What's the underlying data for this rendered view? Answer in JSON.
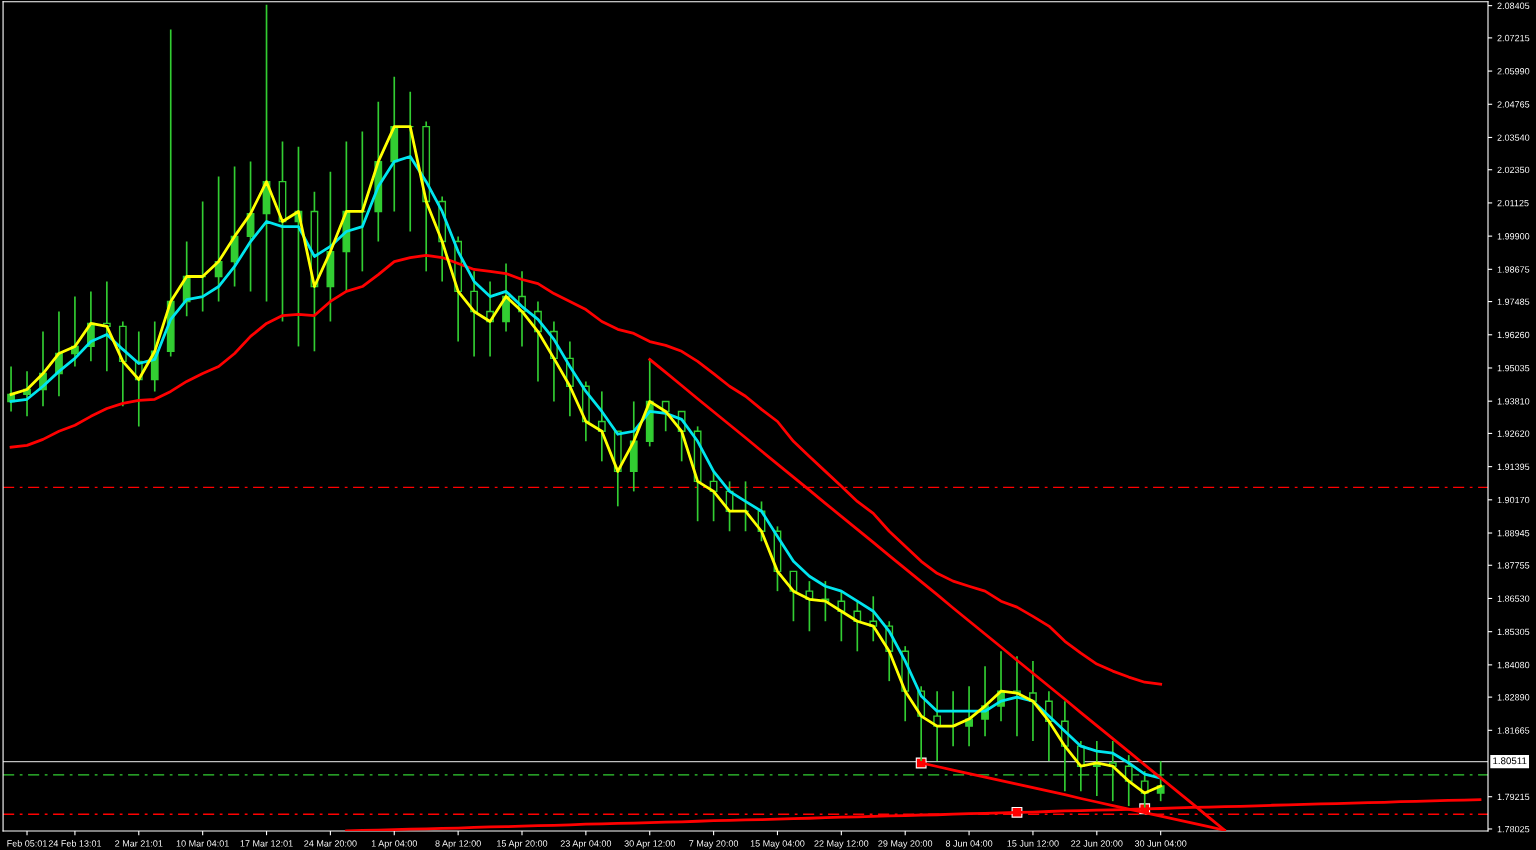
{
  "chart_data": {
    "type": "candlestick",
    "categories": [
      null,
      "Feb 05:01",
      null,
      null,
      "24 Feb 13:01",
      null,
      null,
      null,
      "2 Mar 21:01",
      null,
      null,
      null,
      "10 Mar 04:01",
      null,
      null,
      null,
      "17 Mar 12:01",
      null,
      null,
      null,
      "24 Mar 20:00",
      null,
      null,
      null,
      "1 Apr 04:00",
      null,
      null,
      null,
      "8 Apr 12:00",
      null,
      null,
      null,
      "15 Apr 20:00",
      null,
      null,
      null,
      "23 Apr 04:00",
      null,
      null,
      null,
      "30 Apr 12:00",
      null,
      null,
      null,
      "7 May 20:00",
      null,
      null,
      null,
      "15 May 04:00",
      null,
      null,
      null,
      "22 May 12:00",
      null,
      null,
      null,
      "29 May 20:00",
      null,
      null,
      null,
      "8 Jun 04:00",
      null,
      null,
      null,
      "15 Jun 12:00",
      null,
      null,
      null,
      "22 Jun 20:00",
      null,
      null,
      null,
      "30 Jun 04:00",
      null,
      null,
      null,
      null,
      null,
      null,
      null,
      null,
      null,
      null,
      null,
      null,
      null,
      null,
      null,
      null,
      null,
      null,
      null,
      null
    ],
    "color": "#32cd32",
    "ohlc": [
      [
        1.938,
        1.9509,
        1.9343,
        1.9406
      ],
      [
        1.9406,
        1.9491,
        1.9325,
        1.9424
      ],
      [
        1.9424,
        1.9638,
        1.9362,
        1.9483
      ],
      [
        1.9483,
        1.9712,
        1.9399,
        1.9557
      ],
      [
        1.9557,
        1.9767,
        1.9509,
        1.9583
      ],
      [
        1.9583,
        1.9786,
        1.9528,
        1.9668
      ],
      [
        1.9668,
        1.9823,
        1.9491,
        1.9657
      ],
      [
        1.9657,
        1.9675,
        1.9362,
        1.9528
      ],
      [
        1.9528,
        1.9638,
        1.9288,
        1.9461
      ],
      [
        1.9461,
        1.9675,
        1.9417,
        1.9565
      ],
      [
        1.9565,
        2.0752,
        1.9546,
        1.9749
      ],
      [
        1.9749,
        1.997,
        1.9694,
        1.9841
      ],
      [
        1.9841,
        2.0118,
        1.9712,
        1.9841
      ],
      [
        1.9841,
        2.021,
        1.9749,
        1.9896
      ],
      [
        1.9896,
        2.0247,
        1.9804,
        1.9989
      ],
      [
        1.9989,
        2.0265,
        1.9786,
        2.0073
      ],
      [
        2.0073,
        2.0844,
        1.9749,
        2.0191
      ],
      [
        2.0191,
        2.0339,
        1.9675,
        2.0044
      ],
      [
        2.0044,
        2.032,
        1.9583,
        2.0081
      ],
      [
        2.0081,
        2.0154,
        1.9565,
        1.9804
      ],
      [
        1.9804,
        2.0228,
        1.9675,
        1.9933
      ],
      [
        1.9933,
        2.0339,
        1.9786,
        2.0081
      ],
      [
        2.0081,
        2.0376,
        1.986,
        2.0081
      ],
      [
        2.0081,
        2.0486,
        1.997,
        2.0265
      ],
      [
        2.0265,
        2.0578,
        2.0081,
        2.0394
      ],
      [
        2.0394,
        2.0523,
        2.0007,
        2.0394
      ],
      [
        2.0394,
        2.0413,
        1.986,
        2.0118
      ],
      [
        2.0118,
        2.0136,
        1.9823,
        1.997
      ],
      [
        1.997,
        1.9989,
        1.9601,
        1.9786
      ],
      [
        1.9786,
        1.986,
        1.9546,
        1.9712
      ],
      [
        1.9712,
        1.9823,
        1.9546,
        1.9675
      ],
      [
        1.9675,
        1.9889,
        1.9638,
        1.9767
      ],
      [
        1.9767,
        1.986,
        1.9583,
        1.9712
      ],
      [
        1.9712,
        1.9749,
        1.9454,
        1.9638
      ],
      [
        1.9638,
        1.9675,
        1.938,
        1.9539
      ],
      [
        1.9539,
        1.9601,
        1.9325,
        1.9436
      ],
      [
        1.9436,
        1.9454,
        1.9233,
        1.9306
      ],
      [
        1.9306,
        1.9417,
        1.9159,
        1.927
      ],
      [
        1.927,
        1.927,
        1.8993,
        1.9122
      ],
      [
        1.9122,
        1.938,
        1.9048,
        1.9233
      ],
      [
        1.9233,
        1.9535,
        1.9214,
        1.938
      ],
      [
        1.938,
        1.938,
        1.927,
        1.9343
      ],
      [
        1.9343,
        1.9343,
        1.9159,
        1.927
      ],
      [
        1.927,
        1.9288,
        1.8938,
        1.9085
      ],
      [
        1.9085,
        1.9122,
        1.8938,
        1.9048
      ],
      [
        1.9048,
        1.9085,
        1.8901,
        1.8975
      ],
      [
        1.8975,
        1.9085,
        1.8901,
        1.8975
      ],
      [
        1.8975,
        1.9011,
        1.8864,
        1.8901
      ],
      [
        1.8901,
        1.8919,
        1.868,
        1.8753
      ],
      [
        1.8753,
        1.8753,
        1.8569,
        1.868
      ],
      [
        1.868,
        1.8717,
        1.8532,
        1.865
      ],
      [
        1.865,
        1.8717,
        1.8569,
        1.8643
      ],
      [
        1.8643,
        1.868,
        1.8495,
        1.8606
      ],
      [
        1.8606,
        1.8643,
        1.8458,
        1.8569
      ],
      [
        1.8569,
        1.8661,
        1.8495,
        1.8551
      ],
      [
        1.8551,
        1.8569,
        1.8348,
        1.8458
      ],
      [
        1.8458,
        1.8477,
        1.82,
        1.8311
      ],
      [
        1.8311,
        1.8329,
        1.8053,
        1.8219
      ],
      [
        1.8219,
        1.8311,
        1.8053,
        1.8182
      ],
      [
        1.8182,
        1.8311,
        1.8108,
        1.8182
      ],
      [
        1.8182,
        1.8329,
        1.8108,
        1.8208
      ],
      [
        1.8208,
        1.8403,
        1.8145,
        1.8256
      ],
      [
        1.8256,
        1.8458,
        1.82,
        1.8311
      ],
      [
        1.8311,
        1.844,
        1.8145,
        1.8304
      ],
      [
        1.8304,
        1.8422,
        1.8127,
        1.8274
      ],
      [
        1.8274,
        1.8311,
        1.8053,
        1.82
      ],
      [
        1.82,
        1.8274,
        1.7942,
        1.8108
      ],
      [
        1.8108,
        1.8127,
        1.7942,
        1.8034
      ],
      [
        1.8034,
        1.8127,
        1.7924,
        1.8046
      ],
      [
        1.8046,
        1.8127,
        1.7905,
        1.8034
      ],
      [
        1.8034,
        1.8075,
        1.7887,
        1.7979
      ],
      [
        1.7979,
        1.8016,
        1.7876,
        1.7935
      ],
      [
        1.7935,
        1.8053,
        1.7905,
        1.7961
      ],
      null,
      null,
      null,
      null,
      null,
      null,
      null,
      null,
      null,
      null,
      null,
      null,
      null,
      null,
      null,
      null,
      null,
      null,
      null,
      null
    ],
    "series": [
      {
        "type": "line",
        "color": "#ff0000",
        "values": [
          1.9211,
          1.9218,
          1.924,
          1.927,
          1.9292,
          1.9325,
          1.9354,
          1.9373,
          1.9384,
          1.9388,
          1.9417,
          1.9454,
          1.9483,
          1.9509,
          1.9557,
          1.962,
          1.9668,
          1.9697,
          1.9701,
          1.9697,
          1.9749,
          1.9786,
          1.9804,
          1.9848,
          1.9896,
          1.9911,
          1.9919,
          1.9911,
          1.9889,
          1.9867,
          1.986,
          1.9852,
          1.983,
          1.9815,
          1.9778,
          1.9749,
          1.9719,
          1.9675,
          1.9646,
          1.9631,
          1.9601,
          1.9587,
          1.9565,
          1.9528,
          1.9483,
          1.9436,
          1.9399,
          1.9351,
          1.9306,
          1.9233,
          1.9177,
          1.9122,
          1.9067,
          1.9011,
          1.8967,
          1.8901,
          1.8846,
          1.879,
          1.8746,
          1.8717,
          1.8698,
          1.868,
          1.8643,
          1.8621,
          1.8587,
          1.8551,
          1.8495,
          1.8451,
          1.8411,
          1.8385,
          1.8363,
          1.8344,
          1.8337,
          null,
          null,
          null,
          null,
          null,
          null,
          null,
          null,
          null,
          null,
          null,
          null,
          null,
          null,
          null,
          null,
          null,
          null,
          null,
          null
        ]
      },
      {
        "type": "line",
        "color": "#00e5ee",
        "values": [
          1.938,
          1.9388,
          1.9436,
          1.9491,
          1.9539,
          1.9601,
          1.9627,
          1.9572,
          1.952,
          1.9535,
          1.9683,
          1.9756,
          1.9767,
          1.9804,
          1.9878,
          1.997,
          2.0044,
          2.0025,
          2.0025,
          1.9915,
          1.9952,
          2.0007,
          2.0025,
          2.0173,
          2.0265,
          2.0284,
          2.0191,
          2.0081,
          1.9933,
          1.9823,
          1.9767,
          1.9786,
          1.973,
          1.9683,
          1.9609,
          1.9509,
          1.9417,
          1.9343,
          1.9259,
          1.927,
          1.9343,
          1.9336,
          1.9314,
          1.9233,
          1.9122,
          1.9048,
          1.9011,
          1.8975,
          1.8882,
          1.879,
          1.8735,
          1.8698,
          1.868,
          1.8643,
          1.8606,
          1.8532,
          1.8422,
          1.8293,
          1.8237,
          1.8237,
          1.8237,
          1.8237,
          1.8274,
          1.8289,
          1.8274,
          1.8219,
          1.8163,
          1.8108,
          1.809,
          1.8082,
          1.8046,
          1.8005,
          1.799,
          null,
          null,
          null,
          null,
          null,
          null,
          null,
          null,
          null,
          null,
          null,
          null,
          null,
          null,
          null,
          null,
          null,
          null,
          null,
          null
        ]
      },
      {
        "type": "line",
        "color": "#ffff00",
        "values": [
          1.9406,
          1.9424,
          1.9483,
          1.9557,
          1.9583,
          1.9668,
          1.9657,
          1.9528,
          1.9461,
          1.9565,
          1.9749,
          1.9841,
          1.9841,
          1.9896,
          1.9989,
          2.0073,
          2.0191,
          2.0044,
          2.0081,
          1.9804,
          1.9933,
          2.0081,
          2.0081,
          2.0265,
          2.0394,
          2.0394,
          2.0118,
          1.997,
          1.9786,
          1.9712,
          1.9675,
          1.9767,
          1.9712,
          1.9638,
          1.9539,
          1.9436,
          1.9306,
          1.927,
          1.9122,
          1.9233,
          1.938,
          1.9343,
          1.927,
          1.9085,
          1.9048,
          1.8975,
          1.8975,
          1.8901,
          1.8753,
          1.868,
          1.865,
          1.8643,
          1.8606,
          1.8569,
          1.8551,
          1.8458,
          1.8311,
          1.8219,
          1.8182,
          1.8182,
          1.8208,
          1.8256,
          1.8311,
          1.8304,
          1.8274,
          1.82,
          1.8108,
          1.8034,
          1.8046,
          1.8034,
          1.7979,
          1.7935,
          1.7961,
          null,
          null,
          null,
          null,
          null,
          null,
          null,
          null,
          null,
          null,
          null,
          null,
          null,
          null,
          null,
          null,
          null,
          null,
          null,
          null
        ]
      },
      {
        "type": "line",
        "color": "#ff0000",
        "values": [
          null,
          null,
          null,
          null,
          null,
          null,
          null,
          null,
          null,
          null,
          null,
          null,
          null,
          null,
          null,
          null,
          null,
          null,
          null,
          null,
          null,
          null,
          null,
          null,
          null,
          null,
          null,
          null,
          null,
          null,
          null,
          null,
          null,
          null,
          null,
          null,
          null,
          null,
          null,
          null,
          1.9535,
          1.9487,
          1.9439,
          1.939,
          1.9342,
          1.9294,
          1.9246,
          1.9197,
          1.9149,
          1.9101,
          1.9053,
          1.9004,
          1.8956,
          1.8908,
          1.886,
          1.8811,
          1.8763,
          1.8715,
          1.8667,
          1.8618,
          1.857,
          1.8522,
          1.8474,
          1.8425,
          1.8377,
          1.8329,
          1.8281,
          1.8232,
          1.8184,
          1.8136,
          1.8088,
          1.8039,
          1.7991,
          1.7943,
          1.7895,
          1.7846,
          1.7798,
          null,
          null,
          null,
          null,
          null,
          null,
          null,
          null,
          null,
          null,
          null,
          null,
          null,
          null,
          null,
          null
        ]
      },
      {
        "type": "line",
        "color": "#ff0000",
        "values": [
          null,
          null,
          null,
          null,
          null,
          null,
          null,
          null,
          null,
          null,
          null,
          null,
          null,
          null,
          null,
          null,
          null,
          null,
          null,
          null,
          null,
          null,
          null,
          null,
          null,
          null,
          null,
          null,
          null,
          null,
          null,
          null,
          null,
          null,
          null,
          null,
          null,
          null,
          null,
          null,
          null,
          null,
          null,
          null,
          null,
          null,
          null,
          null,
          null,
          null,
          null,
          null,
          null,
          null,
          null,
          null,
          null,
          1.8046,
          1.8033,
          1.802,
          1.8007,
          1.7994,
          1.7981,
          1.7968,
          1.7955,
          1.7942,
          1.7929,
          1.7915,
          1.7902,
          1.7889,
          1.7876,
          1.7863,
          1.785,
          1.7837,
          1.7824,
          1.7811,
          1.7798,
          null,
          null,
          null,
          null,
          null,
          null,
          null,
          null,
          null,
          null,
          null,
          null,
          null,
          null,
          null,
          null
        ]
      },
      {
        "type": "line",
        "color": "#ff0000",
        "values": [
          null,
          null,
          null,
          null,
          null,
          null,
          null,
          null,
          null,
          null,
          null,
          null,
          null,
          null,
          null,
          null,
          null,
          null,
          null,
          null,
          null,
          1.7795,
          1.7797,
          1.7798,
          1.78,
          1.7802,
          1.7803,
          1.7805,
          1.7806,
          1.7808,
          1.781,
          1.7811,
          1.7813,
          1.7815,
          1.7816,
          1.7818,
          1.782,
          1.7821,
          1.7823,
          1.7824,
          1.7826,
          1.7828,
          1.7829,
          1.7831,
          1.7833,
          1.7834,
          1.7836,
          1.7837,
          1.7839,
          1.7841,
          1.7842,
          1.7844,
          1.7846,
          1.7847,
          1.7849,
          1.7851,
          1.7852,
          1.7854,
          1.7855,
          1.7857,
          1.7859,
          1.786,
          1.7862,
          1.7864,
          1.7865,
          1.7867,
          1.7869,
          1.787,
          1.7872,
          1.7873,
          1.7875,
          1.7877,
          1.7878,
          1.788,
          1.7882,
          1.7883,
          1.7885,
          1.7886,
          1.7888,
          1.789,
          1.7891,
          1.7893,
          1.7895,
          1.7896,
          1.7898,
          1.79,
          1.7901,
          1.7903,
          1.7904,
          1.7906,
          1.7908,
          1.7909,
          1.7911
        ]
      },
      {
        "type": "scatter",
        "color": "#ff0000",
        "marker": "square",
        "values": [
          null,
          null,
          null,
          null,
          null,
          null,
          null,
          null,
          null,
          null,
          null,
          null,
          null,
          null,
          null,
          null,
          null,
          null,
          null,
          null,
          null,
          null,
          null,
          null,
          null,
          null,
          null,
          null,
          null,
          null,
          null,
          null,
          null,
          null,
          null,
          null,
          null,
          null,
          null,
          null,
          null,
          null,
          null,
          null,
          null,
          null,
          null,
          null,
          null,
          null,
          null,
          null,
          null,
          null,
          null,
          null,
          null,
          1.8046,
          null,
          null,
          null,
          null,
          null,
          1.7864,
          null,
          null,
          null,
          null,
          null,
          null,
          null,
          1.7877,
          null,
          null,
          null,
          null,
          null,
          null,
          null,
          null,
          null,
          null,
          null,
          null,
          null,
          null,
          null,
          null,
          null,
          null,
          null,
          null,
          null
        ]
      }
    ],
    "ylim": [
      1.7795,
      2.0855
    ],
    "yticks": [
      2.08405,
      2.07215,
      {
        "value": 2.0599,
        "label": "2.05990"
      },
      2.04765,
      {
        "value": 2.0354,
        "label": "2.03540"
      },
      {
        "value": 2.0235,
        "label": "2.02350"
      },
      2.01125,
      {
        "value": 1.999,
        "label": "1.99900"
      },
      1.98675,
      1.97485,
      {
        "value": 1.9626,
        "label": "1.96260"
      },
      1.95035,
      {
        "value": 1.9381,
        "label": "1.93810"
      },
      {
        "value": 1.9262,
        "label": "1.92620"
      },
      1.91395,
      {
        "value": 1.9017,
        "label": "1.90170"
      },
      1.88945,
      1.87755,
      {
        "value": 1.8653,
        "label": "1.86530"
      },
      1.85305,
      {
        "value": 1.8408,
        "label": "1.84080"
      },
      {
        "value": 1.8289,
        "label": "1.82890"
      },
      1.81665,
      1.79215,
      1.78025
    ],
    "ref_lines": [
      {
        "axis": "y",
        "value": 1.9063,
        "color": "#ff0000",
        "line_style": "dashed"
      },
      {
        "axis": "y",
        "value": 1.8002,
        "color": "#32cd32",
        "line_style": "dashed"
      },
      {
        "axis": "y",
        "value": 1.7857,
        "color": "#ff0000",
        "line_style": "dashed"
      },
      {
        "axis": "y",
        "value": 1.80511,
        "color": "#c0c0c0",
        "line_style": "solid",
        "label": "1.80511"
      }
    ]
  }
}
